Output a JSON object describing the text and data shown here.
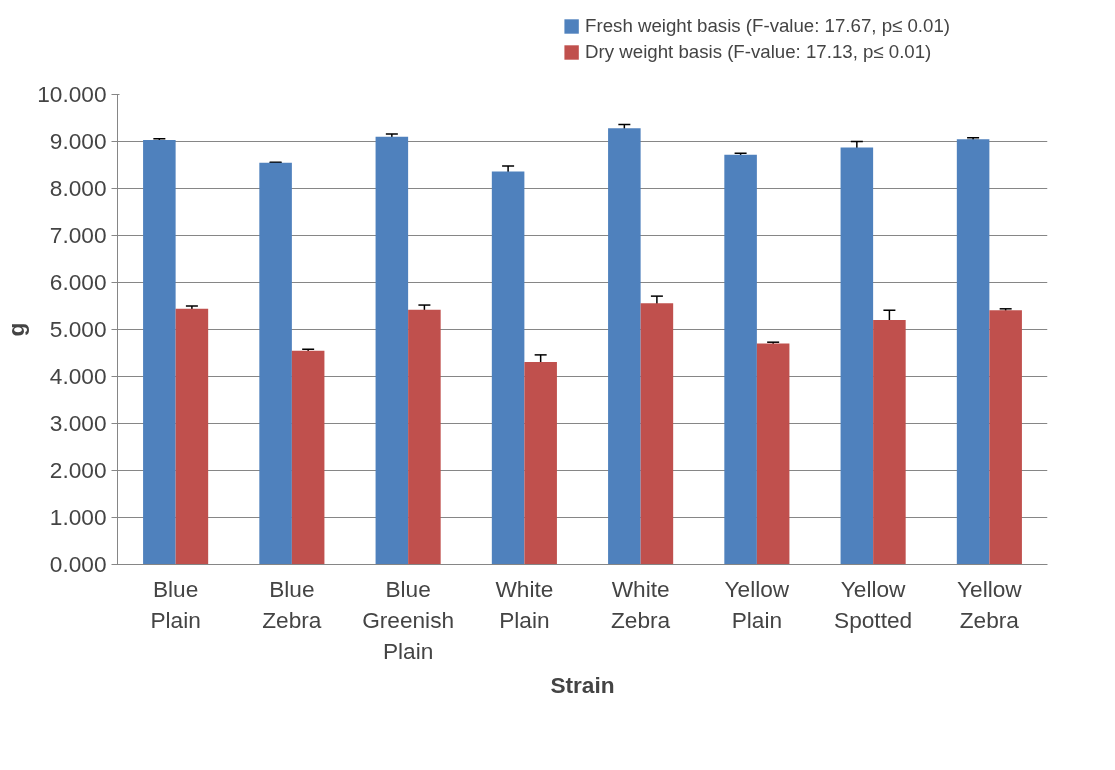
{
  "chart_data": {
    "type": "bar",
    "xlabel": "Strain",
    "ylabel": "g",
    "categories": [
      "Blue Plain",
      "Blue Zebra",
      "Blue Greenish Plain",
      "White Plain",
      "White Zebra",
      "Yellow Plain",
      "Yellow Spotted",
      "Yellow Zebra"
    ],
    "series": [
      {
        "name": "Fresh weight basis (F-value: 17.67, p≤ 0.01)",
        "color": "#4f81bd",
        "values": [
          9.03,
          8.55,
          9.1,
          8.36,
          9.28,
          8.72,
          8.87,
          9.05
        ],
        "errors": [
          0.03,
          0.01,
          0.06,
          0.12,
          0.08,
          0.03,
          0.13,
          0.03
        ]
      },
      {
        "name": "Dry weight basis (F-value: 17.13, p≤ 0.01)",
        "color": "#c0504d",
        "values": [
          5.44,
          4.55,
          5.42,
          4.31,
          5.56,
          4.7,
          5.2,
          5.41
        ],
        "errors": [
          0.06,
          0.03,
          0.1,
          0.15,
          0.15,
          0.03,
          0.21,
          0.03
        ]
      }
    ],
    "ylim": [
      0,
      10
    ],
    "yticks": [
      {
        "value": 0,
        "label": "0.000"
      },
      {
        "value": 1,
        "label": "1.000"
      },
      {
        "value": 2,
        "label": "2.000"
      },
      {
        "value": 3,
        "label": "3.000"
      },
      {
        "value": 4,
        "label": "4.000"
      },
      {
        "value": 5,
        "label": "5.000"
      },
      {
        "value": 6,
        "label": "6.000"
      },
      {
        "value": 7,
        "label": "7.000"
      },
      {
        "value": 8,
        "label": "8.000"
      },
      {
        "value": 9,
        "label": "9.000"
      },
      {
        "value": 10,
        "label": "10.000"
      }
    ],
    "grid": "y",
    "legend": "top right"
  }
}
